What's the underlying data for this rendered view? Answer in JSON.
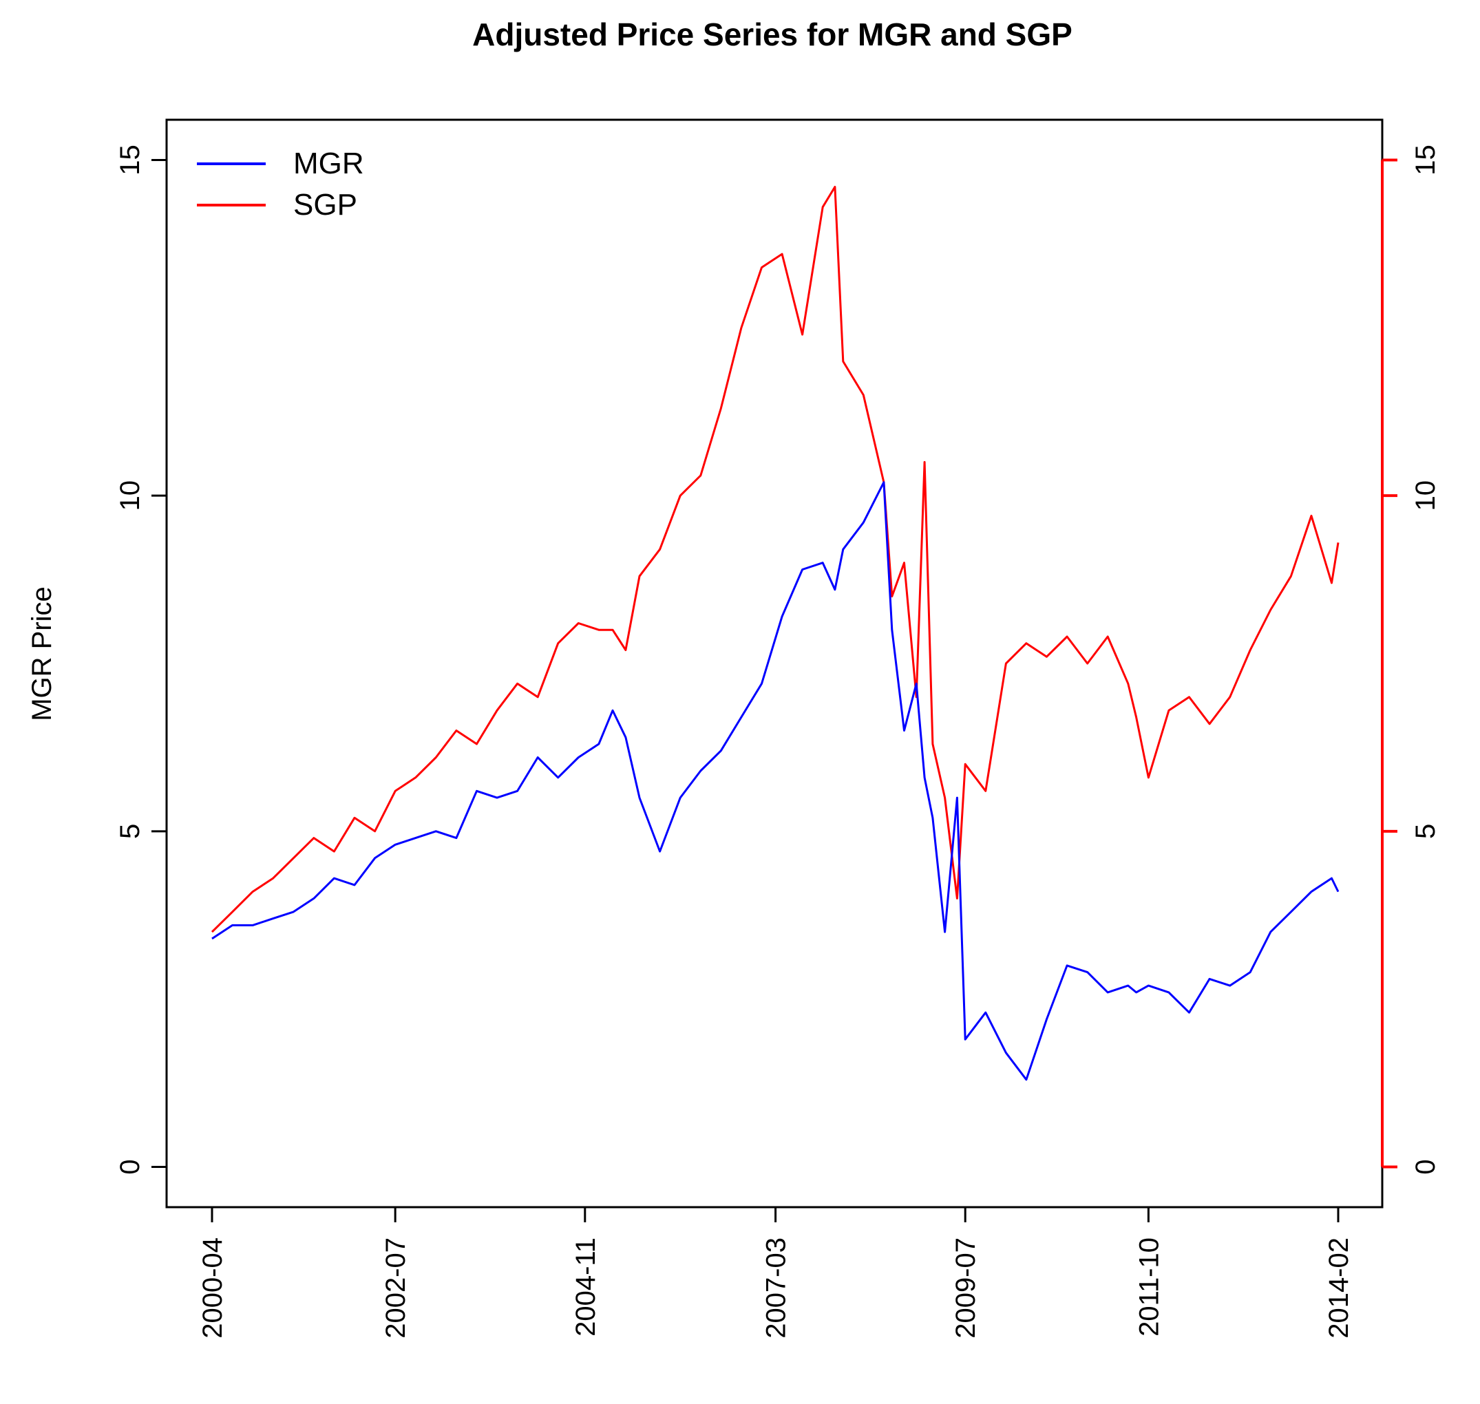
{
  "chart_data": {
    "type": "line",
    "title": "Adjusted Price Series for MGR and SGP",
    "xlabel": "",
    "ylabel": "MGR Price",
    "ylim": [
      -0.6,
      15.6
    ],
    "y_ticks": [
      0,
      5,
      10,
      15
    ],
    "y_tick_labels": [
      "0",
      "5",
      "10",
      "15"
    ],
    "right_axis": {
      "ticks": [
        0,
        5,
        10,
        15
      ],
      "tick_labels": [
        "0",
        "5",
        "10",
        "15"
      ],
      "color": "#ff0000"
    },
    "x_range": [
      2000.0,
      2014.2
    ],
    "x_ticks": [
      2000.25,
      2002.5,
      2004.83,
      2007.17,
      2009.5,
      2011.75,
      2014.08
    ],
    "x_tick_labels": [
      "2000-04",
      "2002-07",
      "2004-11",
      "2007-03",
      "2009-07",
      "2011-10",
      "2014-02"
    ],
    "legend": {
      "position": "top-left",
      "entries": [
        {
          "label": "MGR",
          "color": "#0000ff"
        },
        {
          "label": "SGP",
          "color": "#ff0000"
        }
      ]
    },
    "series": [
      {
        "name": "MGR",
        "color": "#0000ff",
        "x": [
          2000.25,
          2000.5,
          2000.75,
          2001.0,
          2001.25,
          2001.5,
          2001.75,
          2002.0,
          2002.25,
          2002.5,
          2002.75,
          2003.0,
          2003.25,
          2003.5,
          2003.75,
          2004.0,
          2004.25,
          2004.5,
          2004.75,
          2005.0,
          2005.17,
          2005.33,
          2005.5,
          2005.75,
          2006.0,
          2006.25,
          2006.5,
          2006.75,
          2007.0,
          2007.25,
          2007.5,
          2007.75,
          2007.9,
          2008.0,
          2008.25,
          2008.5,
          2008.6,
          2008.75,
          2008.9,
          2009.0,
          2009.1,
          2009.25,
          2009.4,
          2009.5,
          2009.75,
          2010.0,
          2010.25,
          2010.5,
          2010.75,
          2011.0,
          2011.25,
          2011.5,
          2011.6,
          2011.75,
          2012.0,
          2012.25,
          2012.5,
          2012.75,
          2013.0,
          2013.25,
          2013.5,
          2013.75,
          2014.0,
          2014.08
        ],
        "y": [
          3.4,
          3.6,
          3.6,
          3.7,
          3.8,
          4.0,
          4.3,
          4.2,
          4.6,
          4.8,
          4.9,
          5.0,
          4.9,
          5.6,
          5.5,
          5.6,
          6.1,
          5.8,
          6.1,
          6.3,
          6.8,
          6.4,
          5.5,
          4.7,
          5.5,
          5.9,
          6.2,
          6.7,
          7.2,
          8.2,
          8.9,
          9.0,
          8.6,
          9.2,
          9.6,
          10.2,
          8.0,
          6.5,
          7.2,
          5.8,
          5.2,
          3.5,
          5.5,
          1.9,
          2.3,
          1.7,
          1.3,
          2.2,
          3.0,
          2.9,
          2.6,
          2.7,
          2.6,
          2.7,
          2.6,
          2.3,
          2.8,
          2.7,
          2.9,
          3.5,
          3.8,
          4.1,
          4.3,
          4.1
        ]
      },
      {
        "name": "SGP",
        "color": "#ff0000",
        "x": [
          2000.25,
          2000.5,
          2000.75,
          2001.0,
          2001.25,
          2001.5,
          2001.75,
          2002.0,
          2002.25,
          2002.5,
          2002.75,
          2003.0,
          2003.25,
          2003.5,
          2003.75,
          2004.0,
          2004.25,
          2004.5,
          2004.75,
          2005.0,
          2005.17,
          2005.33,
          2005.5,
          2005.75,
          2006.0,
          2006.25,
          2006.5,
          2006.75,
          2007.0,
          2007.25,
          2007.5,
          2007.75,
          2007.9,
          2008.0,
          2008.25,
          2008.5,
          2008.6,
          2008.75,
          2008.9,
          2009.0,
          2009.1,
          2009.25,
          2009.4,
          2009.5,
          2009.75,
          2010.0,
          2010.25,
          2010.5,
          2010.75,
          2011.0,
          2011.25,
          2011.5,
          2011.6,
          2011.75,
          2012.0,
          2012.25,
          2012.5,
          2012.75,
          2013.0,
          2013.25,
          2013.5,
          2013.75,
          2014.0,
          2014.08
        ],
        "y": [
          3.5,
          3.8,
          4.1,
          4.3,
          4.6,
          4.9,
          4.7,
          5.2,
          5.0,
          5.6,
          5.8,
          6.1,
          6.5,
          6.3,
          6.8,
          7.2,
          7.0,
          7.8,
          8.1,
          8.0,
          8.0,
          7.7,
          8.8,
          9.2,
          10.0,
          10.3,
          11.3,
          12.5,
          13.4,
          13.6,
          12.4,
          14.3,
          14.6,
          12.0,
          11.5,
          10.2,
          8.5,
          9.0,
          7.0,
          10.5,
          6.3,
          5.5,
          4.0,
          6.0,
          5.6,
          7.5,
          7.8,
          7.6,
          7.9,
          7.5,
          7.9,
          7.2,
          6.7,
          5.8,
          6.8,
          7.0,
          6.6,
          7.0,
          7.7,
          8.3,
          8.8,
          9.7,
          8.7,
          9.3
        ]
      }
    ]
  }
}
